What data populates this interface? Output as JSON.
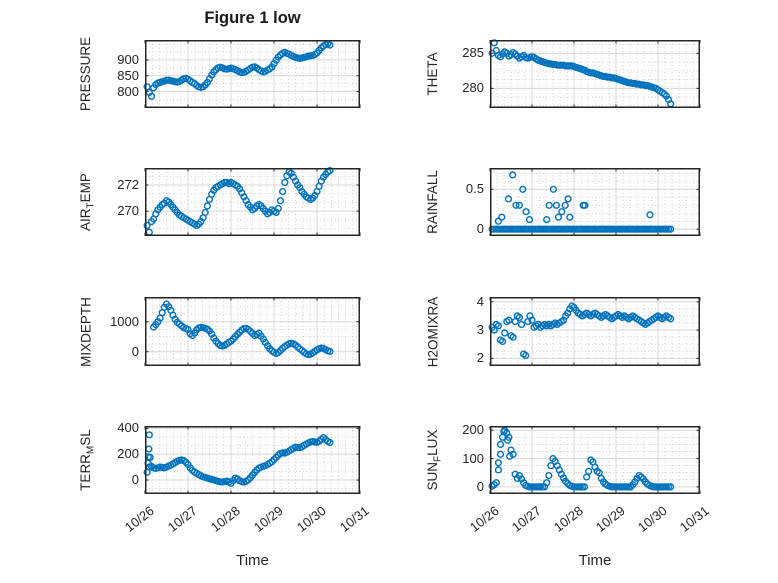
{
  "figure": {
    "title": "Figure 1 low",
    "xlabel": "Time",
    "x_tick_values": [
      0,
      1,
      2,
      3,
      4,
      5
    ],
    "x_tick_labels": [
      "10/26",
      "10/27",
      "10/28",
      "10/29",
      "10/30",
      "10/31"
    ],
    "marker_color": "#0072BD",
    "axis_color": "#262626",
    "grid_color": "#d9d9d9",
    "minor_grid_color": "#c6c6c6"
  },
  "chart_data": [
    {
      "id": "pressure",
      "type": "scatter",
      "row": 0,
      "col": 0,
      "ylabel_parts": [
        {
          "t": "PRESSURE"
        }
      ],
      "xlim": [
        0,
        5
      ],
      "ylim": [
        748,
        963
      ],
      "yticks": [
        800,
        850,
        900
      ],
      "ytick_labels": [
        "800",
        "850",
        "900"
      ],
      "x_start": 0.05,
      "x_step": 0.05,
      "y": [
        815,
        797,
        785,
        812,
        822,
        827,
        829,
        831,
        833,
        836,
        836,
        834,
        833,
        831,
        830,
        832,
        836,
        840,
        842,
        839,
        834,
        829,
        825,
        819,
        815,
        813,
        815,
        821,
        829,
        840,
        852,
        862,
        869,
        875,
        877,
        875,
        872,
        871,
        872,
        874,
        872,
        869,
        866,
        862,
        860,
        861,
        864,
        868,
        873,
        877,
        878,
        874,
        869,
        865,
        862,
        864,
        868,
        872,
        878,
        888,
        899,
        909,
        916,
        921,
        924,
        921,
        918,
        914,
        911,
        908,
        906,
        905,
        906,
        908,
        910,
        912,
        913,
        914,
        917,
        922,
        930,
        938,
        944,
        948,
        951,
        947
      ]
    },
    {
      "id": "theta",
      "type": "scatter",
      "row": 0,
      "col": 1,
      "ylabel_parts": [
        {
          "t": "THETA"
        }
      ],
      "xlim": [
        0,
        5
      ],
      "ylim": [
        277.2,
        286.9
      ],
      "yticks": [
        280,
        285
      ],
      "ytick_labels": [
        "280",
        "285"
      ],
      "x_start": 0.05,
      "x_step": 0.05,
      "y": [
        285.0,
        286.5,
        285.4,
        284.7,
        284.5,
        284.9,
        285.2,
        285.0,
        284.6,
        284.8,
        285.1,
        284.9,
        284.6,
        284.3,
        284.5,
        284.7,
        284.4,
        284.3,
        284.4,
        284.5,
        284.4,
        284.2,
        284.0,
        283.9,
        283.8,
        283.7,
        283.6,
        283.5,
        283.5,
        283.4,
        283.4,
        283.3,
        283.3,
        283.3,
        283.3,
        283.2,
        283.2,
        283.2,
        283.2,
        283.1,
        283.0,
        282.9,
        282.8,
        282.7,
        282.6,
        282.4,
        282.3,
        282.2,
        282.2,
        282.1,
        282.0,
        281.9,
        281.8,
        281.7,
        281.7,
        281.6,
        281.6,
        281.5,
        281.5,
        281.4,
        281.3,
        281.2,
        281.1,
        281.0,
        280.9,
        280.8,
        280.8,
        280.7,
        280.7,
        280.6,
        280.6,
        280.5,
        280.5,
        280.4,
        280.4,
        280.3,
        280.2,
        280.1,
        280.0,
        279.8,
        279.6,
        279.4,
        279.2,
        278.9,
        278.4,
        277.8
      ]
    },
    {
      "id": "airtemp",
      "type": "scatter",
      "row": 1,
      "col": 0,
      "ylabel_parts": [
        {
          "t": "AIR"
        },
        {
          "t": "T",
          "sub": true
        },
        {
          "t": "EMP"
        }
      ],
      "xlim": [
        0,
        5
      ],
      "ylim": [
        268.1,
        273.3
      ],
      "yticks": [
        270,
        272
      ],
      "ytick_labels": [
        "270",
        "272"
      ],
      "x_start": 0.05,
      "x_step": 0.05,
      "y": [
        268.9,
        268.4,
        269.2,
        269.4,
        269.8,
        270.1,
        270.3,
        270.5,
        270.6,
        270.8,
        270.7,
        270.5,
        270.3,
        270.1,
        269.9,
        269.7,
        269.6,
        269.5,
        269.4,
        269.3,
        269.2,
        269.1,
        269.0,
        268.9,
        269.0,
        269.2,
        269.5,
        269.9,
        270.4,
        270.9,
        271.3,
        271.6,
        271.8,
        271.9,
        272.0,
        272.1,
        272.2,
        272.2,
        272.1,
        272.2,
        272.1,
        272.0,
        271.9,
        271.7,
        271.4,
        271.1,
        270.8,
        270.5,
        270.3,
        270.1,
        270.2,
        270.4,
        270.5,
        270.4,
        270.2,
        270.0,
        269.8,
        269.9,
        270.1,
        270.0,
        269.9,
        270.2,
        270.8,
        271.5,
        272.2,
        272.7,
        273.0,
        272.9,
        272.6,
        272.3,
        272.0,
        271.8,
        271.5,
        271.3,
        271.1,
        271.0,
        270.9,
        271.0,
        271.2,
        271.5,
        271.9,
        272.3,
        272.6,
        272.8,
        273.0,
        273.1
      ]
    },
    {
      "id": "rainfall",
      "type": "scatter",
      "row": 1,
      "col": 1,
      "ylabel_parts": [
        {
          "t": "RAINFALL"
        }
      ],
      "xlim": [
        0,
        5
      ],
      "ylim": [
        -0.085,
        0.767
      ],
      "yticks": [
        0,
        0.5
      ],
      "ytick_labels": [
        "0",
        "0.5"
      ],
      "x_start": 0.05,
      "x_step": 0.05,
      "y": [
        0,
        0,
        0,
        0,
        0,
        0,
        0,
        0,
        0,
        0,
        0,
        0,
        0,
        0,
        0,
        0,
        0,
        0,
        0,
        0,
        0,
        0,
        0,
        0,
        0,
        0,
        0,
        0,
        0,
        0,
        0,
        0,
        0,
        0,
        0,
        0,
        0,
        0,
        0,
        0,
        0,
        0,
        0,
        0,
        0,
        0,
        0,
        0,
        0,
        0,
        0,
        0,
        0,
        0,
        0,
        0,
        0,
        0,
        0,
        0,
        0,
        0,
        0,
        0,
        0,
        0,
        0,
        0,
        0,
        0,
        0,
        0,
        0,
        0,
        0,
        0,
        0,
        0,
        0,
        0,
        0,
        0,
        0,
        0,
        0,
        0
      ],
      "extra_points": [
        [
          0.2,
          0.1
        ],
        [
          0.28,
          0.15
        ],
        [
          0.44,
          0.38
        ],
        [
          0.54,
          0.68
        ],
        [
          0.62,
          0.3
        ],
        [
          0.7,
          0.3
        ],
        [
          0.78,
          0.5
        ],
        [
          0.86,
          0.22
        ],
        [
          0.94,
          0.12
        ],
        [
          1.35,
          0.12
        ],
        [
          1.41,
          0.3
        ],
        [
          1.51,
          0.5
        ],
        [
          1.58,
          0.3
        ],
        [
          1.63,
          0.15
        ],
        [
          1.71,
          0.22
        ],
        [
          1.79,
          0.3
        ],
        [
          1.86,
          0.38
        ],
        [
          1.9,
          0.15
        ],
        [
          2.22,
          0.3
        ],
        [
          2.26,
          0.3
        ],
        [
          3.81,
          0.18
        ]
      ]
    },
    {
      "id": "mixdepth",
      "type": "scatter",
      "row": 2,
      "col": 0,
      "ylabel_parts": [
        {
          "t": "MIXDEPTH"
        }
      ],
      "xlim": [
        0,
        5
      ],
      "ylim": [
        -476,
        1823
      ],
      "yticks": [
        0,
        1000
      ],
      "ytick_labels": [
        "0",
        "1000"
      ],
      "x_start": 0.2,
      "x_step": 0.05,
      "y": [
        820,
        900,
        1000,
        1120,
        1300,
        1480,
        1590,
        1500,
        1380,
        1220,
        1080,
        980,
        920,
        860,
        800,
        770,
        740,
        600,
        540,
        620,
        730,
        790,
        810,
        800,
        780,
        750,
        690,
        590,
        460,
        350,
        270,
        210,
        190,
        210,
        260,
        310,
        350,
        420,
        500,
        580,
        650,
        720,
        770,
        780,
        740,
        680,
        610,
        540,
        580,
        620,
        520,
        420,
        310,
        200,
        100,
        30,
        -20,
        -60,
        -30,
        40,
        110,
        170,
        220,
        260,
        280,
        260,
        220,
        160,
        100,
        40,
        -20,
        -70,
        -100,
        -80,
        -40,
        10,
        60,
        100,
        120,
        110,
        70,
        30,
        10
      ]
    },
    {
      "id": "h2omixra",
      "type": "scatter",
      "row": 2,
      "col": 1,
      "ylabel_parts": [
        {
          "t": "H2OMIXRA"
        }
      ],
      "xlim": [
        0,
        5
      ],
      "ylim": [
        1.73,
        4.17
      ],
      "yticks": [
        2,
        3,
        4
      ],
      "ytick_labels": [
        "2",
        "3",
        "4"
      ],
      "x_start": 0.05,
      "x_step": 0.05,
      "y": [
        3.1,
        3.0,
        3.2,
        3.15,
        2.65,
        2.6,
        2.9,
        3.3,
        3.35,
        2.8,
        2.75,
        3.3,
        3.5,
        3.45,
        3.2,
        2.15,
        2.1,
        3.3,
        3.5,
        3.35,
        3.1,
        3.15,
        3.2,
        3.1,
        3.15,
        3.2,
        3.15,
        3.2,
        3.15,
        3.2,
        3.25,
        3.2,
        3.25,
        3.3,
        3.35,
        3.5,
        3.6,
        3.75,
        3.85,
        3.8,
        3.7,
        3.6,
        3.55,
        3.5,
        3.55,
        3.6,
        3.55,
        3.5,
        3.55,
        3.6,
        3.55,
        3.5,
        3.45,
        3.5,
        3.55,
        3.5,
        3.45,
        3.4,
        3.45,
        3.5,
        3.55,
        3.5,
        3.45,
        3.5,
        3.45,
        3.4,
        3.45,
        3.5,
        3.45,
        3.4,
        3.35,
        3.3,
        3.25,
        3.2,
        3.25,
        3.3,
        3.35,
        3.4,
        3.45,
        3.5,
        3.45,
        3.4,
        3.45,
        3.5,
        3.45,
        3.4
      ]
    },
    {
      "id": "terrmsl",
      "type": "scatter",
      "row": 3,
      "col": 0,
      "ylabel_parts": [
        {
          "t": "TERR"
        },
        {
          "t": "M",
          "sub": true
        },
        {
          "t": "SL"
        }
      ],
      "xlim": [
        0,
        5
      ],
      "ylim": [
        -108,
        418
      ],
      "yticks": [
        0,
        200,
        400
      ],
      "ytick_labels": [
        "0",
        "200",
        "400"
      ],
      "x_start": 0.05,
      "x_step": 0.05,
      "y": [
        60,
        100,
        105,
        95,
        90,
        95,
        100,
        98,
        95,
        100,
        108,
        115,
        125,
        135,
        145,
        152,
        155,
        150,
        138,
        120,
        95,
        75,
        62,
        52,
        42,
        33,
        25,
        20,
        15,
        10,
        5,
        0,
        -5,
        -10,
        -14,
        -15,
        -12,
        -8,
        -15,
        -25,
        -5,
        15,
        8,
        -5,
        -12,
        -16,
        -10,
        0,
        18,
        38,
        58,
        78,
        92,
        100,
        106,
        112,
        120,
        130,
        142,
        158,
        175,
        192,
        205,
        210,
        208,
        215,
        225,
        235,
        245,
        255,
        252,
        250,
        258,
        268,
        278,
        288,
        294,
        298,
        294,
        292,
        300,
        315,
        328,
        312,
        298,
        290
      ],
      "extra_points": [
        [
          0.07,
          130
        ],
        [
          0.08,
          180
        ],
        [
          0.09,
          240
        ],
        [
          0.1,
          350
        ],
        [
          0.12,
          175
        ]
      ]
    },
    {
      "id": "sunflux",
      "type": "scatter",
      "row": 3,
      "col": 1,
      "ylabel_parts": [
        {
          "t": "SUN"
        },
        {
          "t": "F",
          "sub": true
        },
        {
          "t": "LUX"
        }
      ],
      "xlim": [
        0,
        5
      ],
      "ylim": [
        -25,
        215
      ],
      "yticks": [
        0,
        100,
        200
      ],
      "ytick_labels": [
        "0",
        "100",
        "200"
      ],
      "x_start": 0.05,
      "x_step": 0.05,
      "y": [
        3,
        8,
        15,
        60,
        115,
        175,
        200,
        190,
        175,
        130,
        115,
        45,
        30,
        40,
        28,
        15,
        5,
        2,
        0,
        0,
        0,
        0,
        0,
        0,
        0,
        0,
        15,
        40,
        75,
        100,
        90,
        75,
        60,
        45,
        32,
        20,
        12,
        5,
        2,
        0,
        0,
        0,
        0,
        0,
        0,
        35,
        55,
        95,
        88,
        70,
        55,
        50,
        30,
        18,
        10,
        5,
        2,
        0,
        0,
        0,
        0,
        0,
        0,
        0,
        0,
        0,
        0,
        8,
        18,
        30,
        40,
        35,
        28,
        18,
        10,
        5,
        2,
        0,
        0,
        0,
        0,
        0,
        0,
        0,
        0,
        0
      ],
      "extra_points": [
        [
          0.2,
          85
        ],
        [
          0.25,
          150
        ],
        [
          0.33,
          195
        ],
        [
          0.42,
          165
        ],
        [
          0.47,
          108
        ]
      ]
    }
  ]
}
